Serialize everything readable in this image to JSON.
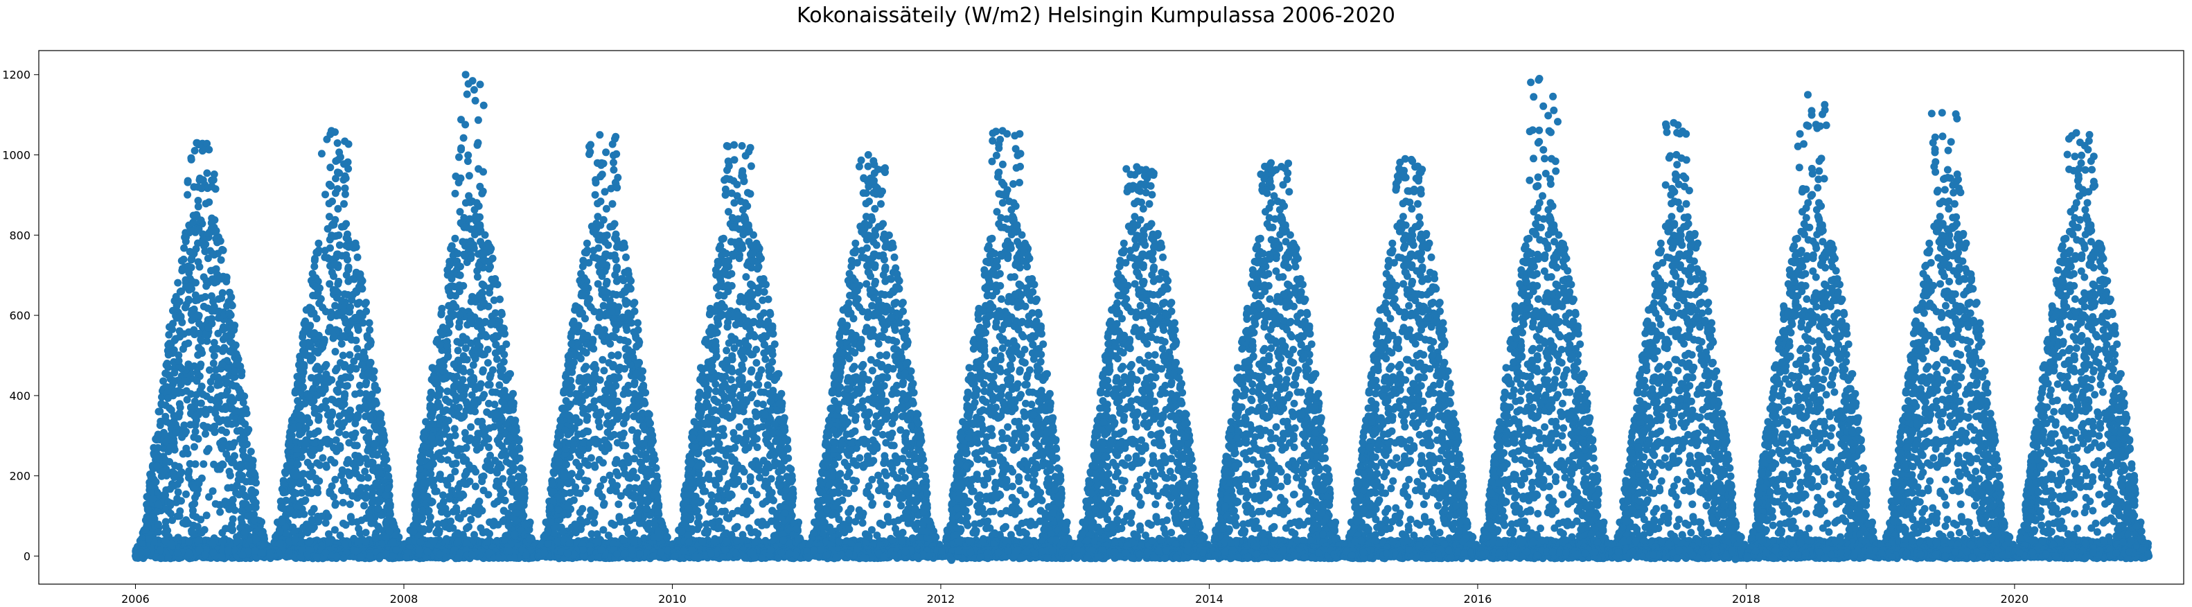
{
  "chart_data": {
    "type": "scatter",
    "title": "Kokonaissäteily (W/m2) Helsingin Kumpulassa 2006-2020",
    "xlabel": "",
    "ylabel": "",
    "x_type": "year",
    "xlim": [
      2005.28,
      2021.26
    ],
    "ylim": [
      -70,
      1260
    ],
    "x_ticks": [
      2006,
      2008,
      2010,
      2012,
      2014,
      2016,
      2018,
      2020
    ],
    "x_tick_labels": [
      "2006",
      "2008",
      "2010",
      "2012",
      "2014",
      "2016",
      "2018",
      "2020"
    ],
    "y_ticks": [
      0,
      200,
      400,
      600,
      800,
      1000,
      1200
    ],
    "y_tick_labels": [
      "0",
      "200",
      "400",
      "600",
      "800",
      "1000",
      "1200"
    ],
    "grid": false,
    "legend": "none",
    "marker_color": "#1f77b4",
    "x_range": [
      2006.0,
      2021.0
    ],
    "series": [
      {
        "annual_pattern": "daily cycle with seasonal envelope peaking at midsummer",
        "seasonal_peak_by_year": [
          {
            "year": 2006,
            "peak": 1030
          },
          {
            "year": 2007,
            "peak": 1060
          },
          {
            "year": 2008,
            "peak": 1200
          },
          {
            "year": 2009,
            "peak": 1050
          },
          {
            "year": 2010,
            "peak": 1025
          },
          {
            "year": 2011,
            "peak": 1000
          },
          {
            "year": 2012,
            "peak": 1060
          },
          {
            "year": 2013,
            "peak": 970
          },
          {
            "year": 2014,
            "peak": 980
          },
          {
            "year": 2015,
            "peak": 990
          },
          {
            "year": 2016,
            "peak": 1190
          },
          {
            "year": 2017,
            "peak": 1080
          },
          {
            "year": 2018,
            "peak": 1150
          },
          {
            "year": 2019,
            "peak": 1105
          },
          {
            "year": 2020,
            "peak": 1055
          }
        ],
        "min_value": -10
      }
    ]
  }
}
